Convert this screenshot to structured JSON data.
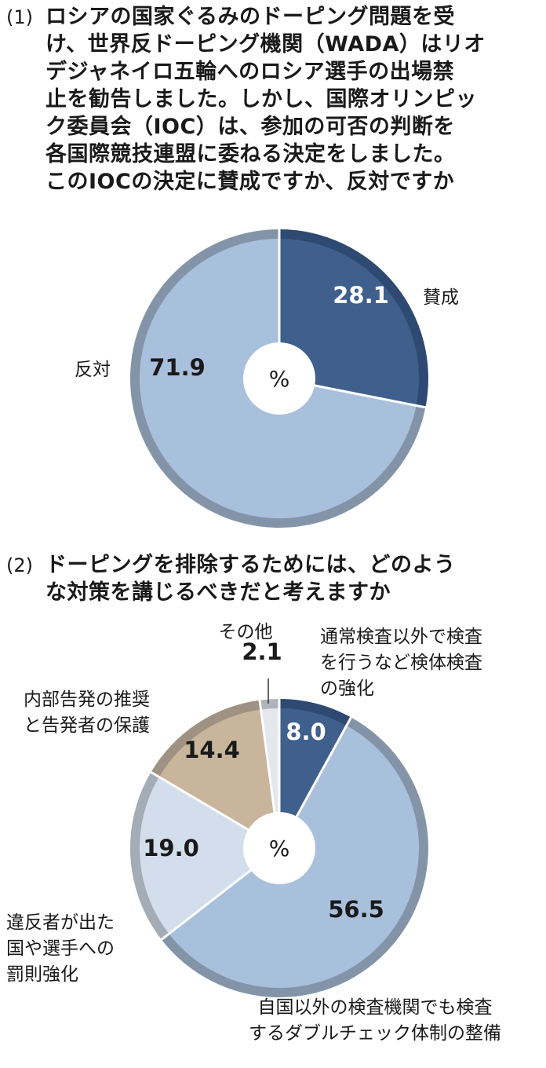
{
  "q1": {
    "number": "(1)",
    "lines": [
      "ロシアの国家ぐるみのドーピング問題を受",
      "け、世界反ドーピング機関（WADA）はリオ",
      "デジャネイロ五輪へのロシア選手の出場禁",
      "止を勧告しました。しかし、国際オリンピッ",
      "ク委員会（IOC）は、参加の可否の判断を",
      "各国際競技連盟に委ねる決定をしました。",
      "このIOCの決定に賛成ですか、反対ですか"
    ]
  },
  "q2": {
    "number": "(2)",
    "lines": [
      "ドーピングを排除するためには、どのよう",
      "な対策を講じるべきだと考えますか"
    ]
  },
  "chart_data": [
    {
      "type": "pie",
      "center_label": "%",
      "slices": [
        {
          "label": "賛成",
          "label_lines": [
            "賛成"
          ],
          "value": 28.1,
          "value_text": "28.1",
          "color": "#3f5f8c",
          "rim": "#2e4a72",
          "text_color": "#ffffff"
        },
        {
          "label": "反対",
          "label_lines": [
            "反対"
          ],
          "value": 71.9,
          "value_text": "71.9",
          "color": "#a9c0dd",
          "rim": "#8494a8",
          "text_color": "#1a1a1a"
        }
      ]
    },
    {
      "type": "pie",
      "center_label": "%",
      "slices": [
        {
          "label": "通常検査以外で検査を行うなど検体検査の強化",
          "label_lines": [
            "通常検査以外で検査",
            "を行うなど検体検査",
            "の強化"
          ],
          "value": 8.0,
          "value_text": "8.0",
          "color": "#3f5f8c",
          "rim": "#2e4a72",
          "text_color": "#ffffff"
        },
        {
          "label": "自国以外の検査機関でも検査するダブルチェック体制の整備",
          "label_lines": [
            "自国以外の検査機関でも検査",
            "するダブルチェック体制の整備"
          ],
          "value": 56.5,
          "value_text": "56.5",
          "color": "#a9c0dd",
          "rim": "#8494a8",
          "text_color": "#1a1a1a"
        },
        {
          "label": "違反者が出た国や選手への罰則強化",
          "label_lines": [
            "違反者が出た",
            "国や選手への",
            "罰則強化"
          ],
          "value": 19.0,
          "value_text": "19.0",
          "color": "#d3deec",
          "rim": "#a4acb6",
          "text_color": "#1a1a1a"
        },
        {
          "label": "内部告発の推奨と告発者の保護",
          "label_lines": [
            "内部告発の推奨",
            "と告発者の保護"
          ],
          "value": 14.4,
          "value_text": "14.4",
          "color": "#c8b59b",
          "rim": "#9f9282",
          "text_color": "#1a1a1a"
        },
        {
          "label": "その他",
          "label_lines": [
            "その他"
          ],
          "value": 2.1,
          "value_text": "2.1",
          "color": "#e4e7ec",
          "rim": "#b0b4ba",
          "text_color": "#1a1a1a"
        }
      ]
    }
  ]
}
